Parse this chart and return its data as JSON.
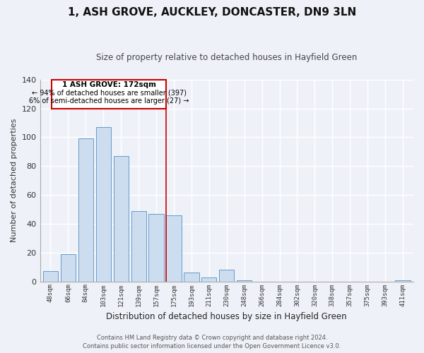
{
  "title": "1, ASH GROVE, AUCKLEY, DONCASTER, DN9 3LN",
  "subtitle": "Size of property relative to detached houses in Hayfield Green",
  "xlabel": "Distribution of detached houses by size in Hayfield Green",
  "ylabel": "Number of detached properties",
  "bar_labels": [
    "48sqm",
    "66sqm",
    "84sqm",
    "103sqm",
    "121sqm",
    "139sqm",
    "157sqm",
    "175sqm",
    "193sqm",
    "211sqm",
    "230sqm",
    "248sqm",
    "266sqm",
    "284sqm",
    "302sqm",
    "320sqm",
    "338sqm",
    "357sqm",
    "375sqm",
    "393sqm",
    "411sqm"
  ],
  "bar_values": [
    7,
    19,
    99,
    107,
    87,
    49,
    47,
    46,
    6,
    3,
    8,
    1,
    0,
    0,
    0,
    0,
    0,
    0,
    0,
    0,
    1
  ],
  "bar_color": "#ccddf0",
  "bar_edge_color": "#6699cc",
  "annotation_label": "1 ASH GROVE: 172sqm",
  "annotation_line1": "← 94% of detached houses are smaller (397)",
  "annotation_line2": "6% of semi-detached houses are larger (27) →",
  "ylim": [
    0,
    140
  ],
  "yticks": [
    0,
    20,
    40,
    60,
    80,
    100,
    120,
    140
  ],
  "footer1": "Contains HM Land Registry data © Crown copyright and database right 2024.",
  "footer2": "Contains public sector information licensed under the Open Government Licence v3.0.",
  "background_color": "#eef2f8",
  "grid_color": "#ffffff",
  "ref_line_color": "#cc0000",
  "box_edge_color": "#cc0000"
}
